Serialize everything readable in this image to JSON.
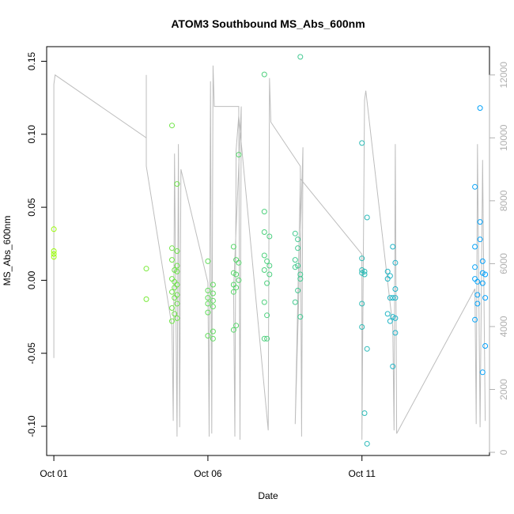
{
  "chart_data": {
    "type": "scatter",
    "title": "ATOM3 Southbound MS_Abs_600nm",
    "xlabel": "Date",
    "ylabel": "MS_Abs_600nm",
    "x_unit": "date",
    "xlim": [
      "2016-09-30T18:24",
      "2016-10-15T03:20"
    ],
    "ylim": [
      -0.12,
      0.16
    ],
    "x_ticks": [
      {
        "x": "2016-10-01",
        "label": "Oct 01"
      },
      {
        "x": "2016-10-06",
        "label": "Oct 06"
      },
      {
        "x": "2016-10-11",
        "label": "Oct 11"
      }
    ],
    "y_ticks": [
      -0.1,
      -0.05,
      0.0,
      0.05,
      0.1,
      0.15
    ],
    "y_tick_labels": [
      "-0.10",
      "-0.05",
      "0.00",
      "0.05",
      "0.10",
      "0.15"
    ],
    "right_axis": {
      "ylim": [
        -100,
        12900
      ],
      "ticks": [
        0,
        2000,
        4000,
        6000,
        8000,
        10000,
        12000
      ],
      "tick_labels": [
        "0",
        "2000",
        "4000",
        "6000",
        "8000",
        "10000",
        "12000"
      ],
      "color": "#b0b0b0"
    },
    "colors": {
      "scatter_start": "#9cff00",
      "scatter_end": "#00a0ff",
      "line": "#bdbdbd"
    },
    "grid": false,
    "legend": "none",
    "series": [
      {
        "type": "scatter",
        "points": [
          [
            "2016-10-01T00:00",
            0.035
          ],
          [
            "2016-10-01T00:00",
            0.02
          ],
          [
            "2016-10-01T00:00",
            0.018
          ],
          [
            "2016-10-01T00:00",
            0.016
          ],
          [
            "2016-10-04T00:00",
            0.008
          ],
          [
            "2016-10-04T00:00",
            -0.013
          ],
          [
            "2016-10-04T20:00",
            0.106
          ],
          [
            "2016-10-05T00:00",
            0.066
          ],
          [
            "2016-10-04T20:00",
            0.022
          ],
          [
            "2016-10-05T00:00",
            0.02
          ],
          [
            "2016-10-04T20:00",
            0.014
          ],
          [
            "2016-10-05T00:00",
            0.01
          ],
          [
            "2016-10-04T22:00",
            0.007
          ],
          [
            "2016-10-05T00:00",
            0.006
          ],
          [
            "2016-10-04T20:00",
            0.001
          ],
          [
            "2016-10-04T22:00",
            -0.001
          ],
          [
            "2016-10-05T00:00",
            -0.003
          ],
          [
            "2016-10-04T22:00",
            -0.005
          ],
          [
            "2016-10-04T20:00",
            -0.008
          ],
          [
            "2016-10-05T00:00",
            -0.01
          ],
          [
            "2016-10-04T22:00",
            -0.012
          ],
          [
            "2016-10-05T00:00",
            -0.016
          ],
          [
            "2016-10-04T20:00",
            -0.019
          ],
          [
            "2016-10-04T22:00",
            -0.023
          ],
          [
            "2016-10-05T00:00",
            -0.026
          ],
          [
            "2016-10-04T20:00",
            -0.028
          ],
          [
            "2016-10-06T00:00",
            0.013
          ],
          [
            "2016-10-06T04:00",
            -0.003
          ],
          [
            "2016-10-06T00:00",
            -0.007
          ],
          [
            "2016-10-06T04:00",
            -0.009
          ],
          [
            "2016-10-06T00:00",
            -0.012
          ],
          [
            "2016-10-06T04:00",
            -0.014
          ],
          [
            "2016-10-06T00:00",
            -0.016
          ],
          [
            "2016-10-06T04:00",
            -0.018
          ],
          [
            "2016-10-06T00:00",
            -0.022
          ],
          [
            "2016-10-06T04:00",
            -0.035
          ],
          [
            "2016-10-06T00:00",
            -0.038
          ],
          [
            "2016-10-06T04:00",
            -0.04
          ],
          [
            "2016-10-06T20:00",
            0.023
          ],
          [
            "2016-10-07T00:00",
            0.086
          ],
          [
            "2016-10-06T22:00",
            0.014
          ],
          [
            "2016-10-07T00:00",
            0.012
          ],
          [
            "2016-10-06T20:00",
            0.005
          ],
          [
            "2016-10-06T22:00",
            0.004
          ],
          [
            "2016-10-07T00:00",
            0.0
          ],
          [
            "2016-10-06T20:00",
            -0.003
          ],
          [
            "2016-10-06T22:00",
            -0.005
          ],
          [
            "2016-10-06T20:00",
            -0.008
          ],
          [
            "2016-10-06T22:00",
            -0.031
          ],
          [
            "2016-10-06T20:00",
            -0.034
          ],
          [
            "2016-10-07T20:00",
            0.141
          ],
          [
            "2016-10-07T20:00",
            0.047
          ],
          [
            "2016-10-07T20:00",
            0.033
          ],
          [
            "2016-10-08T00:00",
            0.03
          ],
          [
            "2016-10-07T20:00",
            0.017
          ],
          [
            "2016-10-07T22:00",
            0.013
          ],
          [
            "2016-10-08T00:00",
            0.01
          ],
          [
            "2016-10-07T20:00",
            0.007
          ],
          [
            "2016-10-08T00:00",
            0.004
          ],
          [
            "2016-10-07T22:00",
            -0.002
          ],
          [
            "2016-10-07T20:00",
            -0.015
          ],
          [
            "2016-10-07T22:00",
            -0.024
          ],
          [
            "2016-10-07T20:00",
            -0.04
          ],
          [
            "2016-10-07T22:00",
            -0.04
          ],
          [
            "2016-10-09T00:00",
            0.153
          ],
          [
            "2016-10-08T20:00",
            0.032
          ],
          [
            "2016-10-08T22:00",
            0.028
          ],
          [
            "2016-10-08T22:00",
            0.022
          ],
          [
            "2016-10-08T20:00",
            0.014
          ],
          [
            "2016-10-08T22:00",
            0.01
          ],
          [
            "2016-10-08T20:00",
            0.009
          ],
          [
            "2016-10-09T00:00",
            0.004
          ],
          [
            "2016-10-09T00:00",
            0.001
          ],
          [
            "2016-10-08T22:00",
            -0.007
          ],
          [
            "2016-10-08T20:00",
            -0.015
          ],
          [
            "2016-10-09T00:00",
            -0.025
          ],
          [
            "2016-10-11T00:00",
            0.094
          ],
          [
            "2016-10-11T04:00",
            0.043
          ],
          [
            "2016-10-11T00:00",
            0.015
          ],
          [
            "2016-10-11T00:00",
            0.007
          ],
          [
            "2016-10-11T02:00",
            0.006
          ],
          [
            "2016-10-11T00:00",
            0.005
          ],
          [
            "2016-10-11T02:00",
            0.004
          ],
          [
            "2016-10-11T00:00",
            -0.016
          ],
          [
            "2016-10-11T00:00",
            -0.032
          ],
          [
            "2016-10-11T04:00",
            -0.047
          ],
          [
            "2016-10-11T02:00",
            -0.091
          ],
          [
            "2016-10-11T04:00",
            -0.112
          ],
          [
            "2016-10-12T00:00",
            0.023
          ],
          [
            "2016-10-12T02:00",
            0.012
          ],
          [
            "2016-10-11T20:00",
            0.006
          ],
          [
            "2016-10-11T22:00",
            0.003
          ],
          [
            "2016-10-11T20:00",
            0.001
          ],
          [
            "2016-10-12T02:00",
            -0.006
          ],
          [
            "2016-10-11T22:00",
            -0.012
          ],
          [
            "2016-10-12T00:00",
            -0.012
          ],
          [
            "2016-10-12T02:00",
            -0.012
          ],
          [
            "2016-10-11T20:00",
            -0.023
          ],
          [
            "2016-10-12T00:00",
            -0.025
          ],
          [
            "2016-10-12T02:00",
            -0.026
          ],
          [
            "2016-10-11T22:00",
            -0.028
          ],
          [
            "2016-10-12T02:00",
            -0.036
          ],
          [
            "2016-10-12T00:00",
            -0.059
          ],
          [
            "2016-10-14T20:00",
            0.118
          ],
          [
            "2016-10-14T16:00",
            0.064
          ],
          [
            "2016-10-14T20:00",
            0.04
          ],
          [
            "2016-10-14T20:00",
            0.028
          ],
          [
            "2016-10-14T16:00",
            0.023
          ],
          [
            "2016-10-14T22:00",
            0.013
          ],
          [
            "2016-10-14T16:00",
            0.009
          ],
          [
            "2016-10-14T22:00",
            0.005
          ],
          [
            "2016-10-15T00:00",
            0.004
          ],
          [
            "2016-10-14T16:00",
            0.001
          ],
          [
            "2016-10-14T18:00",
            -0.001
          ],
          [
            "2016-10-14T22:00",
            -0.002
          ],
          [
            "2016-10-14T18:00",
            -0.01
          ],
          [
            "2016-10-15T00:00",
            -0.012
          ],
          [
            "2016-10-14T18:00",
            -0.016
          ],
          [
            "2016-10-14T16:00",
            -0.027
          ],
          [
            "2016-10-15T00:00",
            -0.045
          ],
          [
            "2016-10-14T22:00",
            -0.063
          ]
        ]
      },
      {
        "type": "line",
        "axis": "right",
        "points": [
          [
            "2016-10-01T00:00",
            4200
          ],
          [
            "2016-10-01T00:00",
            3000
          ],
          [
            "2016-10-01T00:00",
            11700
          ],
          [
            "2016-10-01T01:00",
            12000
          ],
          [
            "2016-10-04T00:00",
            10000
          ],
          [
            "2016-10-04T00:00",
            12000
          ],
          [
            "2016-10-04T00:00",
            9100
          ],
          [
            "2016-10-04T20:00",
            4000
          ],
          [
            "2016-10-04T21:00",
            1000
          ],
          [
            "2016-10-04T22:00",
            9500
          ],
          [
            "2016-10-05T00:00",
            500
          ],
          [
            "2016-10-05T01:00",
            9800
          ],
          [
            "2016-10-05T02:00",
            800
          ],
          [
            "2016-10-05T03:00",
            9000
          ],
          [
            "2016-10-06T00:00",
            5400
          ],
          [
            "2016-10-06T01:00",
            500
          ],
          [
            "2016-10-06T02:00",
            11800
          ],
          [
            "2016-10-06T03:00",
            600
          ],
          [
            "2016-10-06T04:00",
            12300
          ],
          [
            "2016-10-06T05:00",
            11000
          ],
          [
            "2016-10-07T00:00",
            11000
          ],
          [
            "2016-10-07T01:00",
            400
          ],
          [
            "2016-10-07T02:00",
            11000
          ],
          [
            "2016-10-06T20:00",
            5200
          ],
          [
            "2016-10-06T21:00",
            500
          ],
          [
            "2016-10-06T22:00",
            9600
          ],
          [
            "2016-10-07T00:00",
            10700
          ],
          [
            "2016-10-07T23:00",
            700
          ],
          [
            "2016-10-08T00:00",
            11900
          ],
          [
            "2016-10-08T01:00",
            10500
          ],
          [
            "2016-10-09T00:00",
            9100
          ],
          [
            "2016-10-09T01:00",
            500
          ],
          [
            "2016-10-09T02:00",
            9700
          ],
          [
            "2016-10-08T20:00",
            900
          ],
          [
            "2016-10-09T00:00",
            8700
          ],
          [
            "2016-10-11T00:00",
            6300
          ],
          [
            "2016-10-11T00:00",
            400
          ],
          [
            "2016-10-11T02:00",
            11200
          ],
          [
            "2016-10-11T03:00",
            11500
          ],
          [
            "2016-10-12T00:00",
            4000
          ],
          [
            "2016-10-12T01:00",
            700
          ],
          [
            "2016-10-12T02:00",
            9800
          ],
          [
            "2016-10-12T03:00",
            600
          ],
          [
            "2016-10-14T16:00",
            5200
          ],
          [
            "2016-10-14T17:00",
            900
          ],
          [
            "2016-10-14T18:00",
            9800
          ],
          [
            "2016-10-14T20:00",
            800
          ],
          [
            "2016-10-14T22:00",
            9300
          ],
          [
            "2016-10-15T00:00",
            1000
          ]
        ]
      }
    ]
  }
}
